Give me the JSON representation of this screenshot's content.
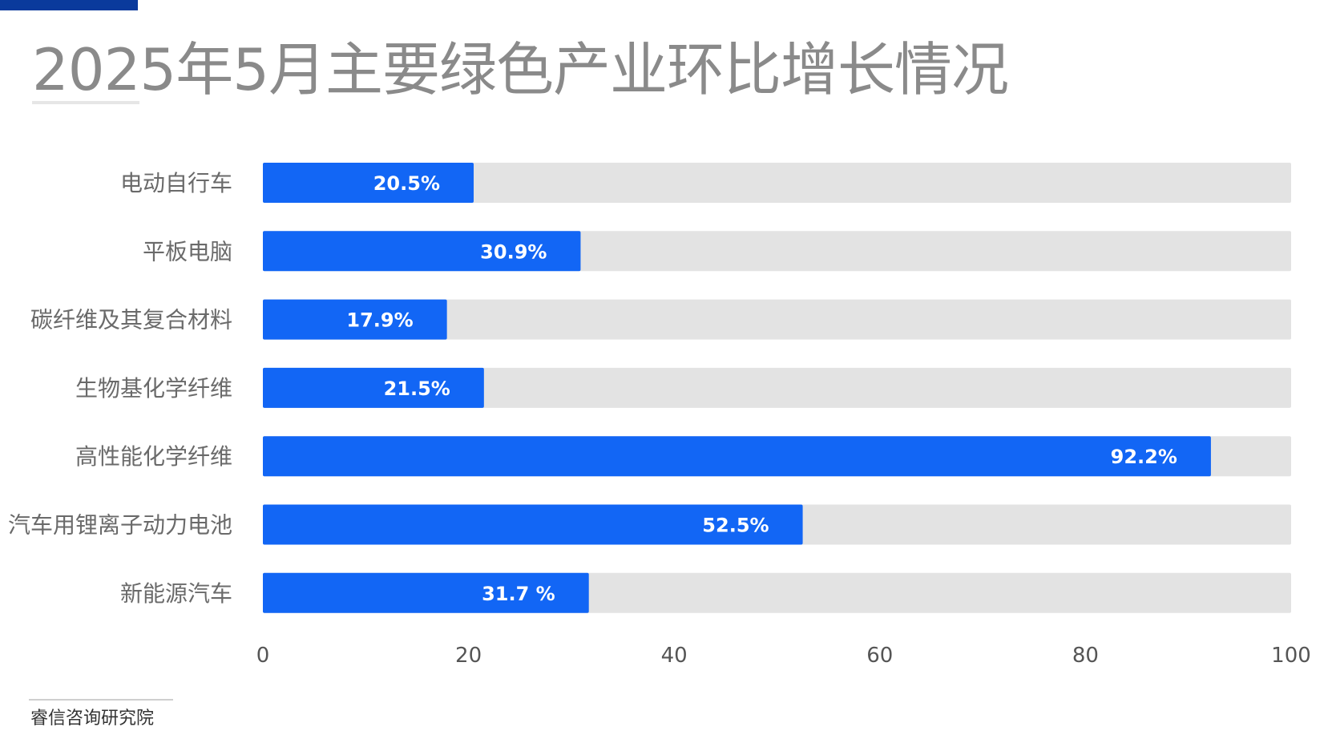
{
  "title": "2025年5月主要绿色产业环比增长情况",
  "source": "睿信咨询研究院",
  "colors": {
    "bar": "#1266f5",
    "track": "#e3e3e3",
    "title": "#8a8a8a",
    "label": "#6a6a6a",
    "accent": "#0a3a9c"
  },
  "chart_data": {
    "type": "bar",
    "orientation": "horizontal",
    "title": "2025年5月主要绿色产业环比增长情况",
    "xlabel": "",
    "ylabel": "",
    "xlim": [
      0,
      100
    ],
    "grid": false,
    "legend": "none",
    "x_ticks": [
      0,
      20,
      40,
      60,
      80,
      100
    ],
    "categories": [
      "电动自行车",
      "平板电脑",
      "碳纤维及其复合材料",
      "生物基化学纤维",
      "高性能化学纤维",
      "汽车用锂离子动力电池",
      "新能源汽车"
    ],
    "values": [
      20.5,
      30.9,
      17.9,
      21.5,
      92.2,
      52.5,
      31.7
    ],
    "data_labels": [
      "20.5%",
      "30.9%",
      "17.9%",
      "21.5%",
      "92.2%",
      "52.5%",
      "31.7 %"
    ]
  }
}
